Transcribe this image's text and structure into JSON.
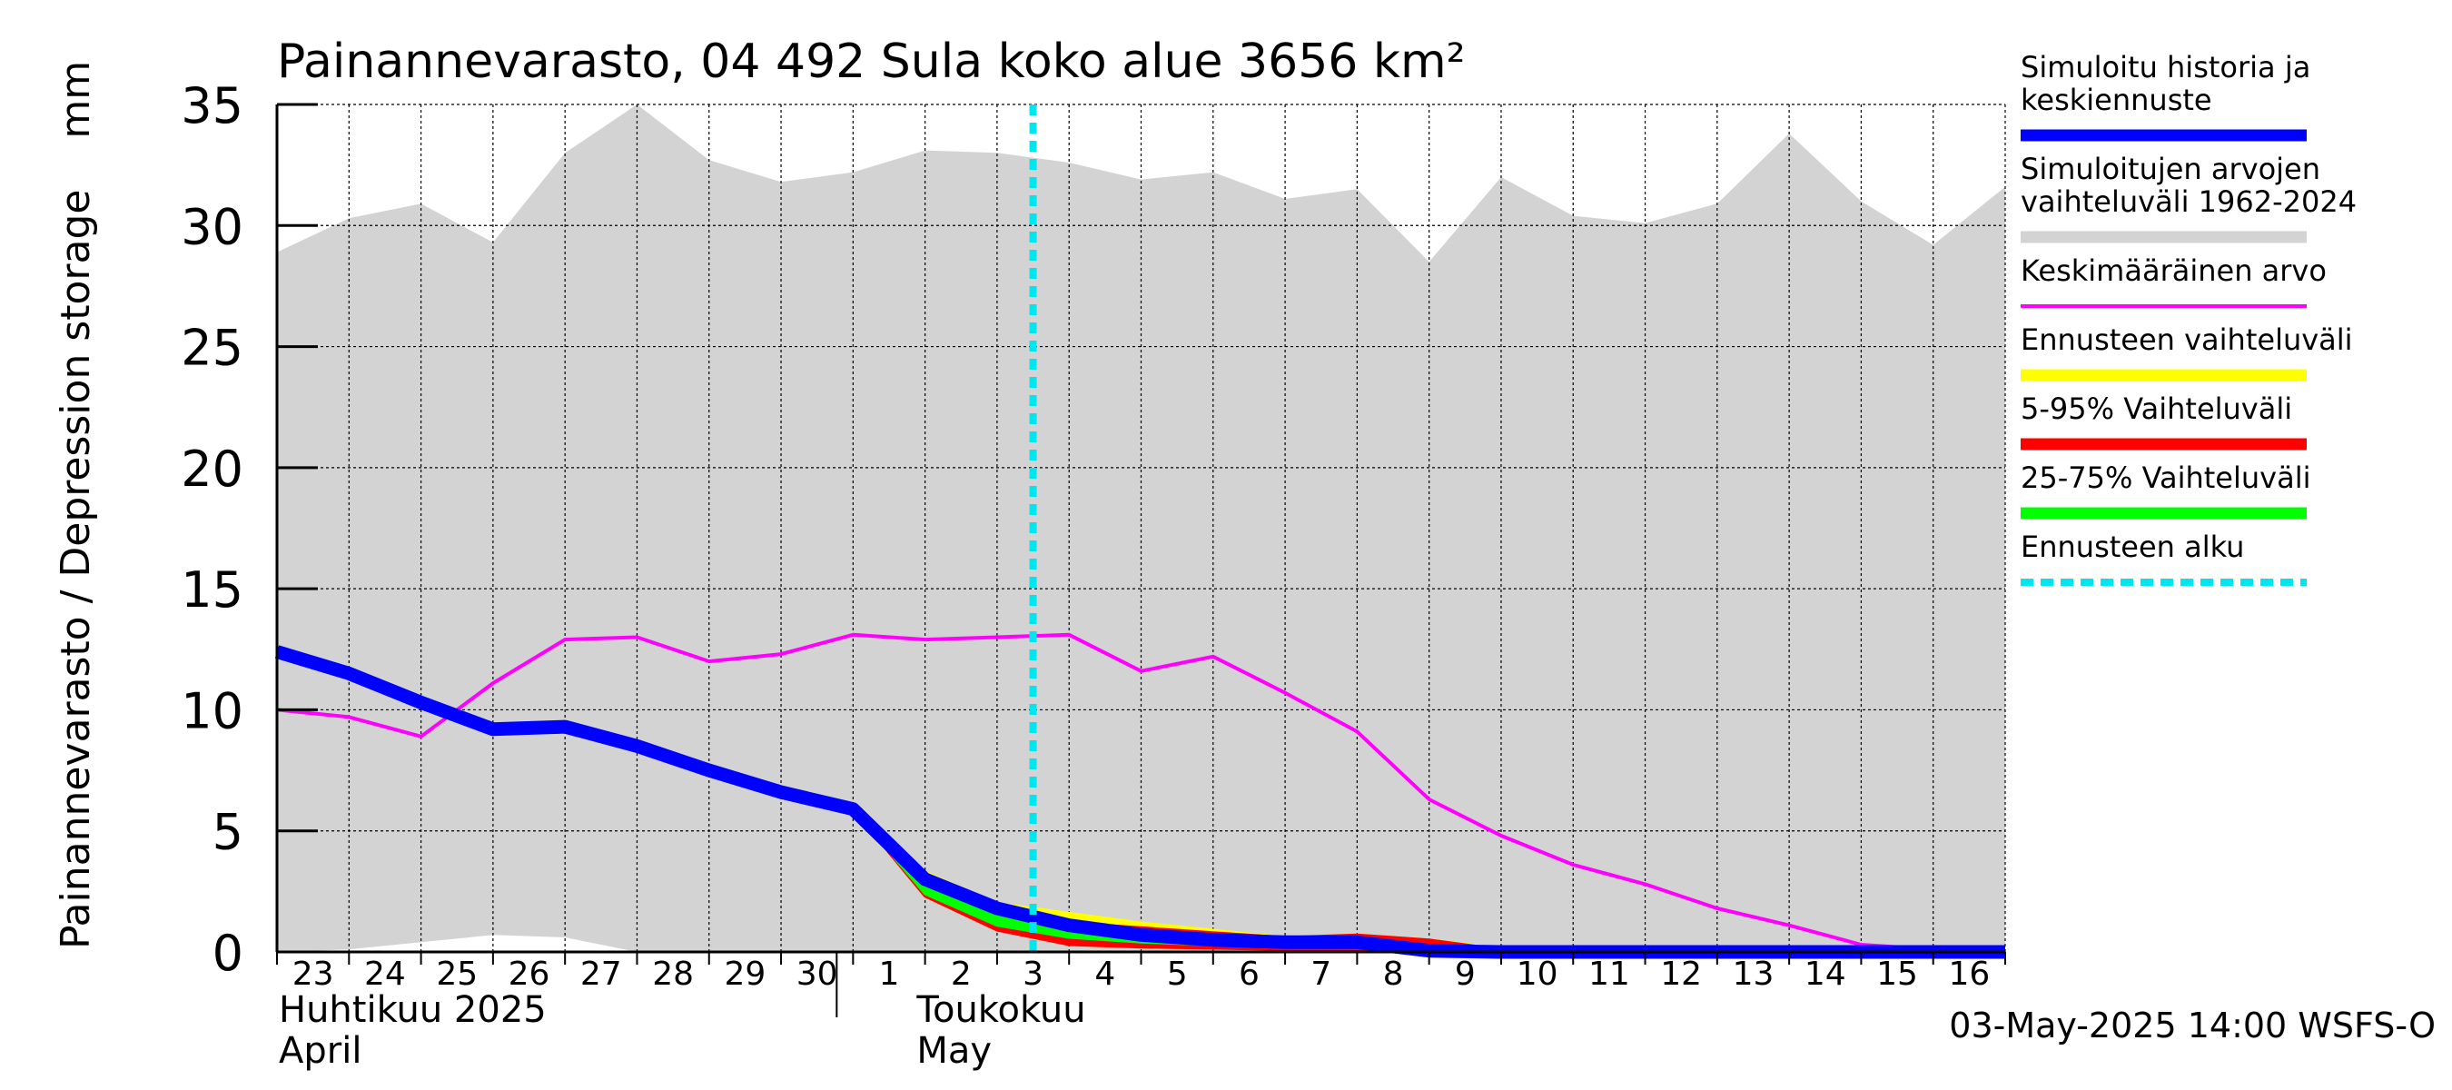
{
  "chart_data": {
    "type": "area",
    "title": "Painannevarasto, 04 492 Sula koko alue 3656 km²",
    "ylabel": "Painannevarasto / Depression storage    mm",
    "ylim": [
      0,
      35
    ],
    "yticks": [
      0,
      5,
      10,
      15,
      20,
      25,
      30,
      35
    ],
    "x_start": "2025-04-23",
    "x_end": "2025-05-17",
    "x_tick_labels": [
      "23",
      "24",
      "25",
      "26",
      "27",
      "28",
      "29",
      "30",
      "1",
      "2",
      "3",
      "4",
      "5",
      "6",
      "7",
      "8",
      "9",
      "10",
      "11",
      "12",
      "13",
      "14",
      "15",
      "16"
    ],
    "month_labels": [
      {
        "fi": "Huhtikuu  2025",
        "en": "April",
        "start": "2025-04-23"
      },
      {
        "fi": "Toukokuu",
        "en": "May",
        "start": "2025-05-01"
      }
    ],
    "grid": true,
    "forecast_start": "2025-05-03T12:00",
    "series": [
      {
        "name": "Simuloitujen arvojen vaihteluväli 1962-2024",
        "kind": "band",
        "color": "#d3d3d3",
        "x": [
          "2025-04-23",
          "2025-04-24",
          "2025-04-25",
          "2025-04-26",
          "2025-04-27",
          "2025-04-28",
          "2025-04-29",
          "2025-04-30",
          "2025-05-01",
          "2025-05-02",
          "2025-05-03",
          "2025-05-04",
          "2025-05-05",
          "2025-05-06",
          "2025-05-07",
          "2025-05-08",
          "2025-05-09",
          "2025-05-10",
          "2025-05-11",
          "2025-05-12",
          "2025-05-13",
          "2025-05-14",
          "2025-05-15",
          "2025-05-16",
          "2025-05-17"
        ],
        "upper": [
          28.9,
          30.3,
          30.9,
          29.3,
          33.0,
          35.0,
          32.7,
          31.8,
          32.2,
          33.1,
          33.0,
          32.6,
          31.9,
          32.2,
          31.1,
          31.5,
          28.5,
          32.0,
          30.4,
          30.1,
          30.9,
          33.8,
          31.0,
          29.2,
          31.6
        ],
        "lower": [
          0,
          0.1,
          0.4,
          0.7,
          0.6,
          0,
          0,
          0,
          0,
          0,
          0,
          0,
          0,
          0,
          0,
          0,
          0,
          0,
          0,
          0,
          0,
          0,
          0,
          0,
          0
        ]
      },
      {
        "name": "Keskimääräinen arvo",
        "kind": "line",
        "color": "#ff00ff",
        "x": [
          "2025-04-23",
          "2025-04-24",
          "2025-04-25",
          "2025-04-26",
          "2025-04-27",
          "2025-04-28",
          "2025-04-29",
          "2025-04-30",
          "2025-05-01",
          "2025-05-02",
          "2025-05-03",
          "2025-05-04",
          "2025-05-05",
          "2025-05-06",
          "2025-05-07",
          "2025-05-08",
          "2025-05-09",
          "2025-05-10",
          "2025-05-11",
          "2025-05-12",
          "2025-05-13",
          "2025-05-14",
          "2025-05-15",
          "2025-05-16",
          "2025-05-17"
        ],
        "values": [
          10.0,
          9.7,
          8.9,
          11.1,
          12.9,
          13.0,
          12.0,
          12.3,
          13.1,
          12.9,
          13.0,
          13.1,
          11.6,
          12.2,
          10.7,
          9.1,
          6.3,
          4.8,
          3.6,
          2.8,
          1.8,
          1.1,
          0.3,
          0.1,
          0.1
        ]
      },
      {
        "name": "Ennusteen vaihteluväli",
        "kind": "band",
        "color": "#ffff00",
        "x": [
          "2025-05-01",
          "2025-05-02",
          "2025-05-03",
          "2025-05-04",
          "2025-05-05",
          "2025-05-06",
          "2025-05-07",
          "2025-05-08",
          "2025-05-09",
          "2025-05-10",
          "2025-05-11"
        ],
        "upper": [
          5.9,
          3.3,
          2.0,
          1.6,
          1.2,
          0.9,
          0.6,
          0.7,
          0.5,
          0.15,
          0.1
        ],
        "lower": [
          5.9,
          2.3,
          0.9,
          0.3,
          0.2,
          0.15,
          0.1,
          0.1,
          0.05,
          0,
          0
        ]
      },
      {
        "name": "5-95% Vaihteluväli",
        "kind": "band",
        "color": "#ff0000",
        "x": [
          "2025-05-01",
          "2025-05-02",
          "2025-05-03",
          "2025-05-04",
          "2025-05-05",
          "2025-05-06",
          "2025-05-07",
          "2025-05-08",
          "2025-05-09",
          "2025-05-10",
          "2025-05-11"
        ],
        "upper": [
          5.9,
          3.2,
          1.8,
          1.2,
          1.0,
          0.8,
          0.6,
          0.7,
          0.5,
          0.1,
          0.05
        ],
        "lower": [
          5.9,
          2.3,
          0.9,
          0.3,
          0.2,
          0.15,
          0.1,
          0.1,
          0.05,
          0,
          0
        ]
      },
      {
        "name": "25-75% Vaihteluväli",
        "kind": "band",
        "color": "#00ff00",
        "x": [
          "2025-05-01",
          "2025-05-02",
          "2025-05-03",
          "2025-05-04",
          "2025-05-05",
          "2025-05-06",
          "2025-05-07",
          "2025-05-08",
          "2025-05-09",
          "2025-05-10"
        ],
        "upper": [
          5.9,
          3.0,
          1.7,
          1.0,
          0.7,
          0.6,
          0.5,
          0.4,
          0.1,
          0.05
        ],
        "lower": [
          5.9,
          2.4,
          1.1,
          0.6,
          0.4,
          0.3,
          0.25,
          0.2,
          0.0,
          0
        ]
      },
      {
        "name": "Simuloitu historia ja keskiennuste",
        "kind": "line",
        "color": "#0000ff",
        "x": [
          "2025-04-23",
          "2025-04-24",
          "2025-04-25",
          "2025-04-26",
          "2025-04-27",
          "2025-04-28",
          "2025-04-29",
          "2025-04-30",
          "2025-05-01",
          "2025-05-02",
          "2025-05-03",
          "2025-05-04",
          "2025-05-05",
          "2025-05-06",
          "2025-05-07",
          "2025-05-08",
          "2025-05-09",
          "2025-05-10",
          "2025-05-11",
          "2025-05-12",
          "2025-05-13",
          "2025-05-14",
          "2025-05-15",
          "2025-05-16",
          "2025-05-17"
        ],
        "values": [
          12.4,
          11.5,
          10.3,
          9.2,
          9.3,
          8.5,
          7.5,
          6.6,
          5.9,
          3.0,
          1.8,
          1.1,
          0.7,
          0.5,
          0.4,
          0.4,
          0.05,
          0.0,
          0.0,
          0.0,
          0.0,
          0.0,
          0.0,
          0.0,
          0.0
        ]
      }
    ],
    "legend": {
      "position": "right",
      "items": [
        {
          "label_lines": [
            "Simuloitu historia ja",
            "keskiennuste"
          ],
          "color": "#0000ff",
          "style": "thick"
        },
        {
          "label_lines": [
            "Simuloitujen arvojen",
            "vaihteluväli 1962-2024"
          ],
          "color": "#d3d3d3",
          "style": "thick"
        },
        {
          "label_lines": [
            "Keskimääräinen arvo"
          ],
          "color": "#ff00ff",
          "style": "thin"
        },
        {
          "label_lines": [
            "Ennusteen vaihteluväli"
          ],
          "color": "#ffff00",
          "style": "thick"
        },
        {
          "label_lines": [
            "5-95% Vaihteluväli"
          ],
          "color": "#ff0000",
          "style": "thick"
        },
        {
          "label_lines": [
            "25-75% Vaihteluväli"
          ],
          "color": "#00ff00",
          "style": "thick"
        },
        {
          "label_lines": [
            "Ennusteen alku"
          ],
          "color": "#00e5ee",
          "style": "dashed"
        }
      ]
    },
    "footer": "03-May-2025 14:00 WSFS-O"
  }
}
